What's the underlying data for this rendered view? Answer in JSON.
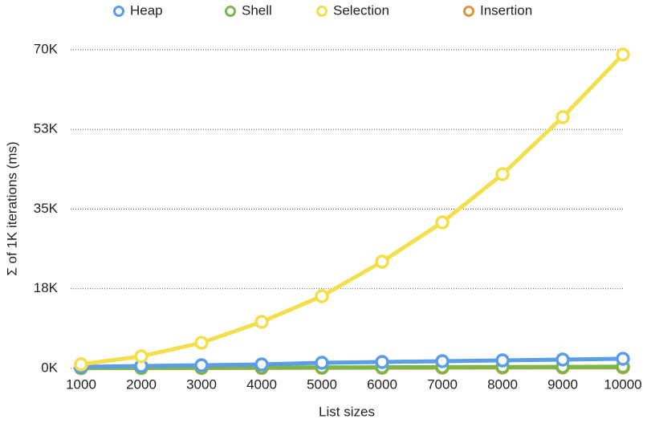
{
  "chart_data": {
    "type": "line",
    "x_label": "List sizes",
    "y_label": "Σ of 1K iterations (ms)",
    "x": [
      1000,
      2000,
      3000,
      4000,
      5000,
      6000,
      7000,
      8000,
      9000,
      10000
    ],
    "xlim": [
      1000,
      10000
    ],
    "xticks": [
      1000,
      2000,
      3000,
      4000,
      5000,
      6000,
      7000,
      8000,
      9000,
      10000
    ],
    "ylim": [
      0,
      70000
    ],
    "yticks": [
      {
        "value": 0,
        "label": "0K"
      },
      {
        "value": 17500,
        "label": "18K"
      },
      {
        "value": 35000,
        "label": "35K"
      },
      {
        "value": 52500,
        "label": "53K"
      },
      {
        "value": 70000,
        "label": "70K"
      }
    ],
    "grid": true,
    "legend": "top",
    "series": [
      {
        "name": "Heap",
        "color": "#5b9de6",
        "values": [
          350,
          530,
          700,
          880,
          1230,
          1410,
          1590,
          1760,
          1940,
          2120
        ]
      },
      {
        "name": "Shell",
        "color": "#7ab648",
        "values": [
          100,
          130,
          160,
          190,
          220,
          250,
          280,
          310,
          340,
          380
        ]
      },
      {
        "name": "Selection",
        "color": "#f3df4c",
        "values": [
          900,
          2650,
          5640,
          10230,
          15870,
          23450,
          32090,
          42670,
          55190,
          68950
        ]
      },
      {
        "name": "Insertion",
        "color": "#e0963a",
        "values": [
          50,
          70,
          90,
          110,
          130,
          150,
          170,
          190,
          210,
          230
        ]
      }
    ]
  }
}
